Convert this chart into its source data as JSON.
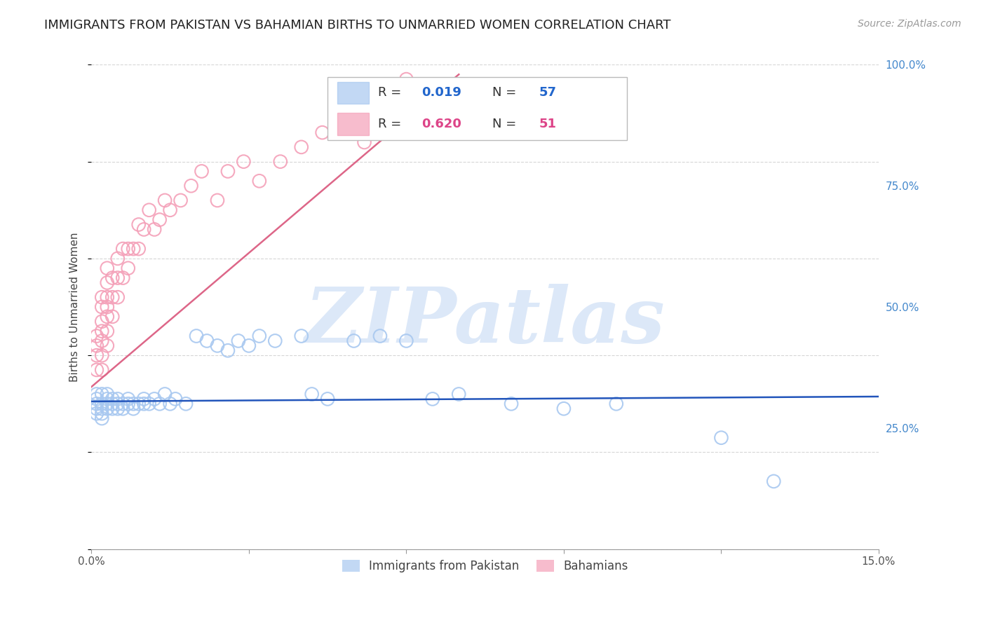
{
  "title": "IMMIGRANTS FROM PAKISTAN VS BAHAMIAN BIRTHS TO UNMARRIED WOMEN CORRELATION CHART",
  "source": "Source: ZipAtlas.com",
  "ylabel": "Births to Unmarried Women",
  "xlim": [
    0.0,
    0.15
  ],
  "ylim": [
    0.0,
    1.0
  ],
  "xticks": [
    0.0,
    0.03,
    0.06,
    0.09,
    0.12,
    0.15
  ],
  "xtick_labels": [
    "0.0%",
    "",
    "",
    "",
    "",
    "15.0%"
  ],
  "yticks": [
    0.0,
    0.25,
    0.5,
    0.75,
    1.0
  ],
  "ytick_labels": [
    "",
    "25.0%",
    "50.0%",
    "75.0%",
    "100.0%"
  ],
  "blue_color": "#a8c8f0",
  "pink_color": "#f4a0b8",
  "blue_line_color": "#2255bb",
  "pink_line_color": "#dd6688",
  "watermark": "ZIPatlas",
  "watermark_color": "#dce8f8",
  "legend_label_blue": "Immigrants from Pakistan",
  "legend_label_pink": "Bahamians",
  "blue_scatter_x": [
    0.001,
    0.001,
    0.001,
    0.001,
    0.001,
    0.002,
    0.002,
    0.002,
    0.002,
    0.002,
    0.003,
    0.003,
    0.003,
    0.003,
    0.004,
    0.004,
    0.004,
    0.005,
    0.005,
    0.005,
    0.006,
    0.006,
    0.007,
    0.007,
    0.008,
    0.008,
    0.009,
    0.01,
    0.01,
    0.011,
    0.012,
    0.013,
    0.014,
    0.015,
    0.016,
    0.018,
    0.02,
    0.022,
    0.024,
    0.026,
    0.028,
    0.03,
    0.032,
    0.035,
    0.04,
    0.042,
    0.045,
    0.05,
    0.055,
    0.06,
    0.065,
    0.07,
    0.08,
    0.09,
    0.1,
    0.12,
    0.13
  ],
  "blue_scatter_y": [
    0.32,
    0.3,
    0.29,
    0.28,
    0.31,
    0.32,
    0.3,
    0.29,
    0.28,
    0.27,
    0.3,
    0.31,
    0.32,
    0.29,
    0.31,
    0.3,
    0.29,
    0.3,
    0.31,
    0.29,
    0.3,
    0.29,
    0.31,
    0.3,
    0.3,
    0.29,
    0.3,
    0.3,
    0.31,
    0.3,
    0.31,
    0.3,
    0.32,
    0.3,
    0.31,
    0.3,
    0.44,
    0.43,
    0.42,
    0.41,
    0.43,
    0.42,
    0.44,
    0.43,
    0.44,
    0.32,
    0.31,
    0.43,
    0.44,
    0.43,
    0.31,
    0.32,
    0.3,
    0.29,
    0.3,
    0.23,
    0.14
  ],
  "pink_scatter_x": [
    0.001,
    0.001,
    0.001,
    0.001,
    0.002,
    0.002,
    0.002,
    0.002,
    0.002,
    0.002,
    0.002,
    0.003,
    0.003,
    0.003,
    0.003,
    0.003,
    0.003,
    0.003,
    0.004,
    0.004,
    0.004,
    0.005,
    0.005,
    0.005,
    0.006,
    0.006,
    0.007,
    0.007,
    0.008,
    0.009,
    0.009,
    0.01,
    0.011,
    0.012,
    0.013,
    0.014,
    0.015,
    0.017,
    0.019,
    0.021,
    0.024,
    0.026,
    0.029,
    0.032,
    0.036,
    0.04,
    0.044,
    0.048,
    0.052,
    0.056,
    0.06
  ],
  "pink_scatter_y": [
    0.37,
    0.4,
    0.42,
    0.44,
    0.37,
    0.4,
    0.43,
    0.45,
    0.47,
    0.5,
    0.52,
    0.42,
    0.45,
    0.48,
    0.5,
    0.52,
    0.55,
    0.58,
    0.48,
    0.52,
    0.56,
    0.52,
    0.56,
    0.6,
    0.56,
    0.62,
    0.58,
    0.62,
    0.62,
    0.62,
    0.67,
    0.66,
    0.7,
    0.66,
    0.68,
    0.72,
    0.7,
    0.72,
    0.75,
    0.78,
    0.72,
    0.78,
    0.8,
    0.76,
    0.8,
    0.83,
    0.86,
    0.88,
    0.84,
    0.88,
    0.97
  ],
  "blue_trend_x": [
    0.0,
    0.15
  ],
  "blue_trend_y": [
    0.305,
    0.315
  ],
  "pink_trend_x": [
    0.0,
    0.07
  ],
  "pink_trend_y": [
    0.335,
    0.98
  ],
  "grid_color": "#cccccc",
  "background_color": "#ffffff",
  "title_fontsize": 13,
  "axis_label_fontsize": 11,
  "tick_fontsize": 11
}
